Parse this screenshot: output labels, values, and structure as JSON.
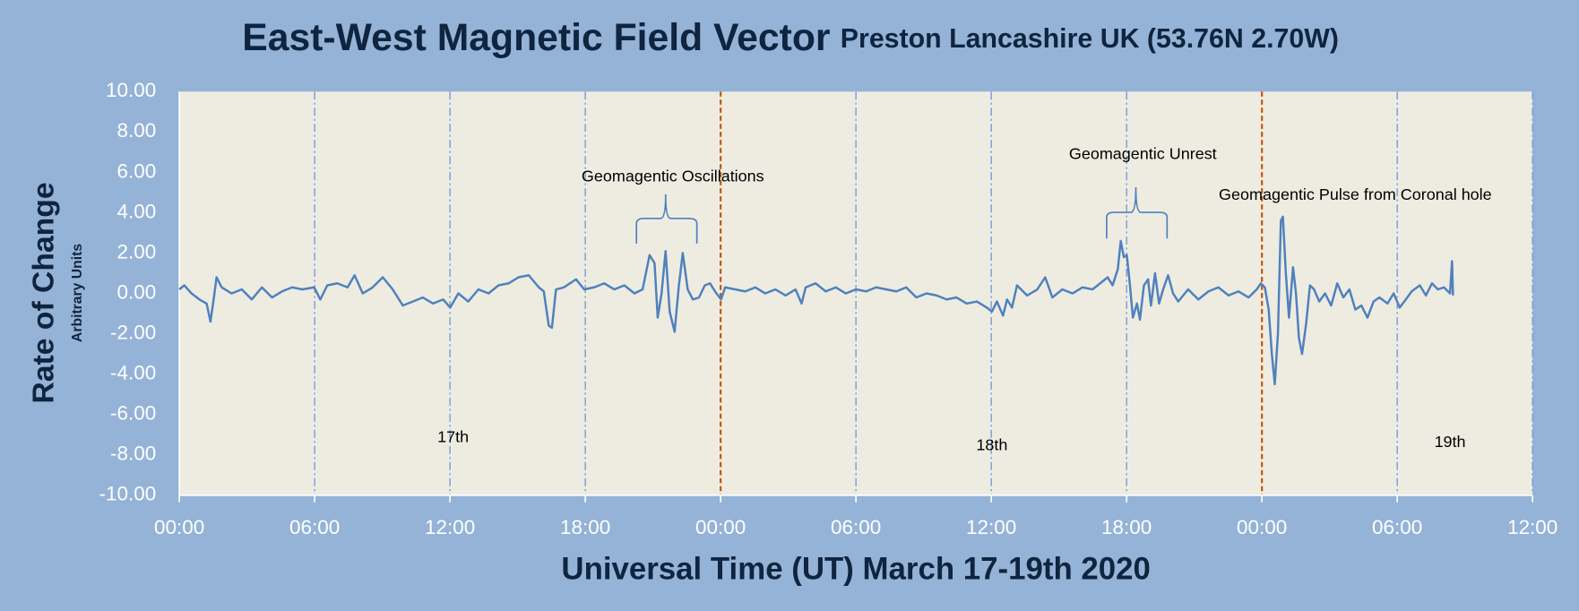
{
  "chart_data": {
    "type": "line",
    "title": "East-West Magnetic Field Vector",
    "subtitle": "Preston Lancashire UK (53.76N 2.70W)",
    "y_label": "Rate of Change",
    "y_sublabel": "Arbitrary Units",
    "x_label": "Universal Time (UT) March 17-19th 2020",
    "color": "#4f81bd",
    "grid": true,
    "grid_color": "#6f9bd6",
    "day_line_color": "#c55a11",
    "xlim": [
      0,
      60
    ],
    "xticks": [
      {
        "value": 0,
        "label": "00:00"
      },
      {
        "value": 6,
        "label": "06:00"
      },
      {
        "value": 12,
        "label": "12:00"
      },
      {
        "value": 18,
        "label": "18:00"
      },
      {
        "value": 24,
        "label": "00:00"
      },
      {
        "value": 30,
        "label": "06:00"
      },
      {
        "value": 36,
        "label": "12:00"
      },
      {
        "value": 42,
        "label": "18:00"
      },
      {
        "value": 48,
        "label": "00:00"
      },
      {
        "value": 54,
        "label": "06:00"
      },
      {
        "value": 60,
        "label": "12:00"
      }
    ],
    "ylim": [
      -10,
      10
    ],
    "yticks": [
      {
        "value": 10,
        "label": "10.00"
      },
      {
        "value": 8,
        "label": "8.00"
      },
      {
        "value": 6,
        "label": "6.00"
      },
      {
        "value": 4,
        "label": "4.00"
      },
      {
        "value": 2,
        "label": "2.00"
      },
      {
        "value": 0,
        "label": "0.00"
      },
      {
        "value": -2,
        "label": "-2.00"
      },
      {
        "value": -4,
        "label": "-4.00"
      },
      {
        "value": -6,
        "label": "-6.00"
      },
      {
        "value": -8,
        "label": "-8.00"
      },
      {
        "value": -10,
        "label": "-10.00"
      }
    ],
    "annotations": [
      {
        "text": "Geomagentic Oscillations",
        "x": 21.88,
        "y": 5.76
      },
      {
        "text": "17th",
        "x": 12.14,
        "y": -7.16
      },
      {
        "text": "18th",
        "x": 36.03,
        "y": -7.56
      },
      {
        "text": "19th",
        "x": 56.34,
        "y": -7.41
      },
      {
        "text": "Geomagentic Unrest",
        "x": 42.72,
        "y": 6.86
      },
      {
        "text": "Geomagentic Pulse from Coronal hole",
        "x": 52.14,
        "y": 4.86
      }
    ],
    "x": [
      0,
      0.22,
      0.54,
      0.89,
      1.21,
      1.38,
      1.52,
      1.65,
      1.88,
      2.32,
      2.77,
      3.21,
      3.66,
      4.11,
      4.55,
      5.0,
      5.45,
      5.98,
      6.25,
      6.56,
      7.01,
      7.46,
      7.77,
      8.13,
      8.57,
      9.02,
      9.46,
      9.91,
      10.36,
      10.8,
      11.25,
      11.7,
      12.01,
      12.37,
      12.81,
      13.26,
      13.71,
      14.15,
      14.6,
      15.04,
      15.49,
      15.94,
      16.16,
      16.38,
      16.52,
      16.7,
      17.05,
      17.59,
      17.95,
      18.39,
      18.84,
      19.29,
      19.73,
      20.18,
      20.54,
      20.85,
      21.07,
      21.21,
      21.38,
      21.56,
      21.74,
      21.96,
      22.14,
      22.32,
      22.54,
      22.77,
      23.04,
      23.3,
      23.53,
      23.75,
      24.02,
      24.2,
      24.64,
      25.09,
      25.54,
      25.98,
      26.43,
      26.88,
      27.32,
      27.59,
      27.77,
      28.21,
      28.66,
      29.11,
      29.55,
      30.0,
      30.45,
      30.89,
      31.34,
      31.79,
      32.23,
      32.68,
      33.13,
      33.57,
      34.02,
      34.46,
      34.91,
      35.36,
      35.8,
      36.03,
      36.25,
      36.52,
      36.7,
      36.92,
      37.14,
      37.59,
      38.04,
      38.39,
      38.71,
      39.15,
      39.6,
      40.04,
      40.49,
      40.94,
      41.16,
      41.38,
      41.61,
      41.74,
      41.88,
      42.01,
      42.14,
      42.28,
      42.46,
      42.59,
      42.77,
      42.95,
      43.08,
      43.26,
      43.44,
      43.62,
      43.84,
      44.06,
      44.29,
      44.73,
      45.18,
      45.63,
      46.07,
      46.52,
      46.96,
      47.41,
      47.77,
      47.95,
      48.13,
      48.3,
      48.44,
      48.57,
      48.71,
      48.84,
      48.93,
      49.06,
      49.2,
      49.38,
      49.51,
      49.64,
      49.78,
      49.96,
      50.13,
      50.31,
      50.54,
      50.8,
      51.07,
      51.34,
      51.61,
      51.88,
      52.14,
      52.41,
      52.68,
      52.95,
      53.21,
      53.57,
      53.84,
      54.11,
      54.38,
      54.64,
      55.0,
      55.27,
      55.54,
      55.8,
      56.07,
      56.34,
      56.43,
      56.47
    ],
    "values": [
      0.2,
      0.4,
      0,
      -0.3,
      -0.5,
      -1.4,
      -0.3,
      0.8,
      0.3,
      0,
      0.2,
      -0.3,
      0.3,
      -0.2,
      0.1,
      0.3,
      0.2,
      0.3,
      -0.3,
      0.4,
      0.5,
      0.3,
      0.9,
      0,
      0.3,
      0.8,
      0.2,
      -0.6,
      -0.4,
      -0.2,
      -0.5,
      -0.3,
      -0.7,
      0,
      -0.4,
      0.2,
      0,
      0.4,
      0.5,
      0.8,
      0.9,
      0.3,
      0.1,
      -1.6,
      -1.7,
      0.2,
      0.3,
      0.7,
      0.2,
      0.3,
      0.5,
      0.2,
      0.4,
      0,
      0.2,
      1.9,
      1.5,
      -1.2,
      0,
      2.1,
      -0.9,
      -1.9,
      0.3,
      2,
      0.2,
      -0.3,
      -0.2,
      0.4,
      0.5,
      0.1,
      -0.3,
      0.3,
      0.2,
      0.1,
      0.3,
      0,
      0.2,
      -0.1,
      0.2,
      -0.5,
      0.3,
      0.5,
      0.1,
      0.3,
      0,
      0.2,
      0.1,
      0.3,
      0.2,
      0.1,
      0.3,
      -0.2,
      0,
      -0.1,
      -0.3,
      -0.2,
      -0.5,
      -0.4,
      -0.7,
      -0.9,
      -0.4,
      -1.1,
      -0.3,
      -0.7,
      0.4,
      -0.1,
      0.2,
      0.8,
      -0.2,
      0.2,
      0,
      0.3,
      0.2,
      0.6,
      0.8,
      0.4,
      1.2,
      2.6,
      1.8,
      1.9,
      0.5,
      -1.2,
      -0.5,
      -1.3,
      0.4,
      0.7,
      -0.6,
      1,
      -0.5,
      0.2,
      0.9,
      0,
      -0.4,
      0.2,
      -0.3,
      0.1,
      0.3,
      -0.1,
      0.1,
      -0.2,
      0.2,
      0.5,
      0.3,
      -0.8,
      -3,
      -4.5,
      -2,
      3.6,
      3.8,
      1,
      -1.2,
      1.3,
      0,
      -2.2,
      -3,
      -1.5,
      0.4,
      0.2,
      -0.4,
      0,
      -0.6,
      0.5,
      -0.2,
      0.2,
      -0.8,
      -0.6,
      -1.2,
      -0.4,
      -0.2,
      -0.5,
      0,
      -0.7,
      -0.3,
      0.1,
      0.4,
      -0.1,
      0.5,
      0.2,
      0.3,
      0,
      1.6,
      -0.1
    ]
  }
}
